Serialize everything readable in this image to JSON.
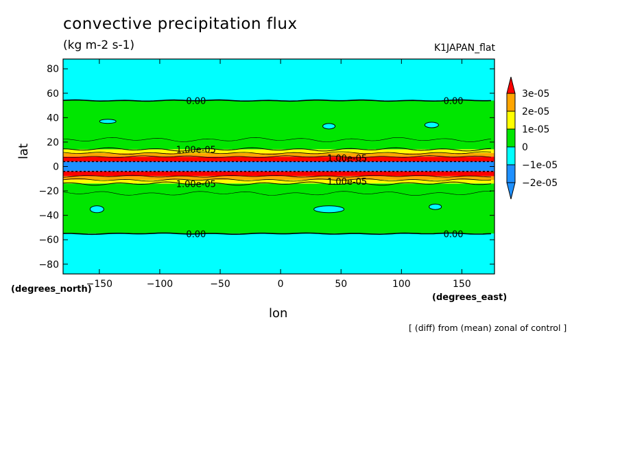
{
  "chart_data": {
    "type": "heatmap",
    "title": "convective precipitation flux",
    "units": "(kg m-2 s-1)",
    "run_name": "K1JAPAN_flat",
    "xlabel": "lon",
    "ylabel": "lat",
    "x_unit": "(degrees_east)",
    "y_unit": "(degrees_north)",
    "xlim": [
      -180,
      177
    ],
    "ylim": [
      -88,
      88
    ],
    "x_ticks": [
      -150,
      -100,
      -50,
      0,
      50,
      100,
      150
    ],
    "y_ticks": [
      80,
      60,
      40,
      20,
      0,
      -20,
      -40,
      -60,
      -80
    ],
    "colorbar": {
      "levels": [
        "3e-05",
        "2e-05",
        "1e-05",
        "0",
        "-1e-05",
        "-2e-05"
      ],
      "colors": [
        "#ff0000",
        "#ffa500",
        "#ffff00",
        "#00e600",
        "#00ffff",
        "#1e90ff",
        "#1e90ff"
      ]
    },
    "bands": [
      {
        "lat_from": 88,
        "lat_to": 54,
        "level": "< 0",
        "color": "#00ffff"
      },
      {
        "lat_from": 54,
        "lat_to": 14,
        "level": "0 to 1e-05",
        "color": "#00e600"
      },
      {
        "lat_from": 14,
        "lat_to": 11,
        "level": "1e-05 to 2e-05",
        "color": "#ffff00"
      },
      {
        "lat_from": 11,
        "lat_to": 8,
        "level": "2e-05 to 3e-05",
        "color": "#ffa500"
      },
      {
        "lat_from": 8,
        "lat_to": 4,
        "level": "> 3e-05",
        "color": "#ff0000"
      },
      {
        "lat_from": 4,
        "lat_to": -4,
        "level": "< -2e-05",
        "color": "#1e90ff"
      },
      {
        "lat_from": -4,
        "lat_to": -8,
        "level": "> 3e-05",
        "color": "#ff0000"
      },
      {
        "lat_from": -8,
        "lat_to": -11,
        "level": "2e-05 to 3e-05",
        "color": "#ffa500"
      },
      {
        "lat_from": -11,
        "lat_to": -14,
        "level": "1e-05 to 2e-05",
        "color": "#ffff00"
      },
      {
        "lat_from": -14,
        "lat_to": -55,
        "level": "0 to 1e-05",
        "color": "#00e600"
      },
      {
        "lat_from": -55,
        "lat_to": -88,
        "level": "< 0",
        "color": "#00ffff"
      }
    ],
    "contour_labels": [
      {
        "text": "0.00",
        "lon": -70,
        "lat": 54
      },
      {
        "text": "0.00",
        "lon": 143,
        "lat": 54
      },
      {
        "text": "0.00",
        "lon": -70,
        "lat": -55
      },
      {
        "text": "0.00",
        "lon": 143,
        "lat": -55
      },
      {
        "text": "1.00e-05",
        "lon": -70,
        "lat": 14
      },
      {
        "text": "1.00e-05",
        "lon": -70,
        "lat": -14
      },
      {
        "text": "1.00e-05",
        "lon": 55,
        "lat": 7
      },
      {
        "text": "1.00e-05",
        "lon": 55,
        "lat": -12
      }
    ],
    "grid": false,
    "legend_placement": "right"
  },
  "annotation": "[ (diff) from (mean) zonal of control ]"
}
